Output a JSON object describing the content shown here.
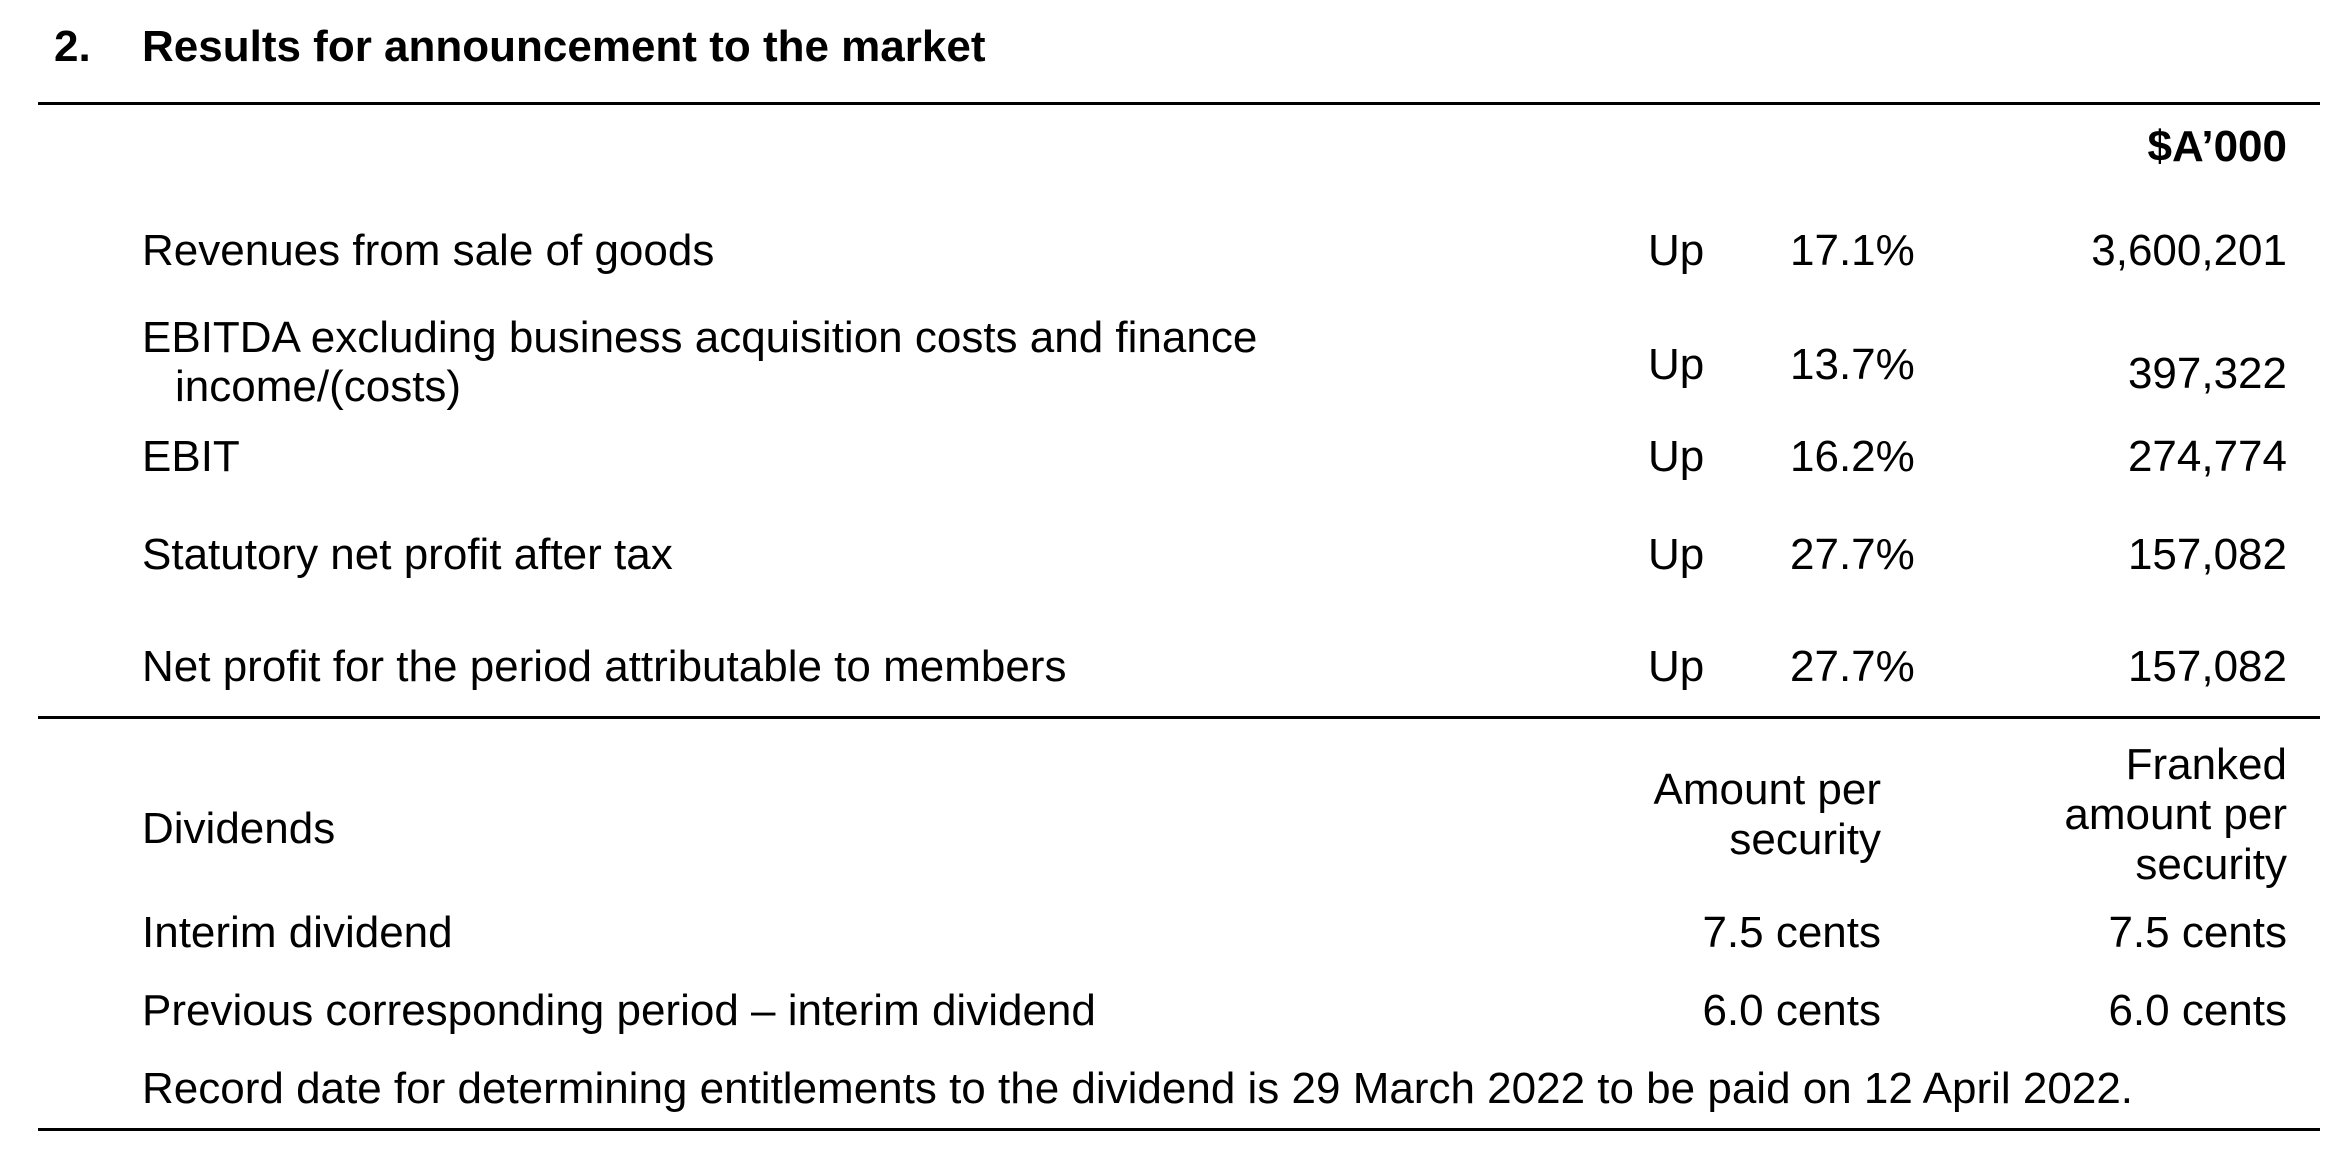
{
  "section": {
    "number": "2.",
    "title": "Results for announcement to the market"
  },
  "currency_header": "$A’000",
  "results": [
    {
      "label": "Revenues from sale of goods",
      "direction": "Up",
      "change": "17.1%",
      "value": "3,600,201"
    },
    {
      "label": "EBITDA excluding business acquisition costs and finance",
      "label_cont": "income/(costs)",
      "direction": "Up",
      "change": "13.7%",
      "value": "397,322"
    },
    {
      "label": "EBIT",
      "direction": "Up",
      "change": "16.2%",
      "value": "274,774"
    },
    {
      "label": "Statutory net profit after tax",
      "direction": "Up",
      "change": "27.7%",
      "value": "157,082"
    },
    {
      "label": "Net profit for the period attributable to members",
      "direction": "Up",
      "change": "27.7%",
      "value": "157,082"
    }
  ],
  "dividends": {
    "label": "Dividends",
    "col_amount_line1": "Amount per",
    "col_amount_line2": "security",
    "col_franked_line1": "Franked",
    "col_franked_line2": "amount per",
    "col_franked_line3": "security",
    "rows": [
      {
        "label": "Interim dividend",
        "amount": "7.5 cents",
        "franked": "7.5 cents"
      },
      {
        "label": "Previous corresponding period – interim dividend",
        "amount": "6.0 cents",
        "franked": "6.0 cents"
      }
    ],
    "note": "Record date for determining entitlements to the dividend is 29 March 2022 to be paid on 12 April 2022."
  }
}
